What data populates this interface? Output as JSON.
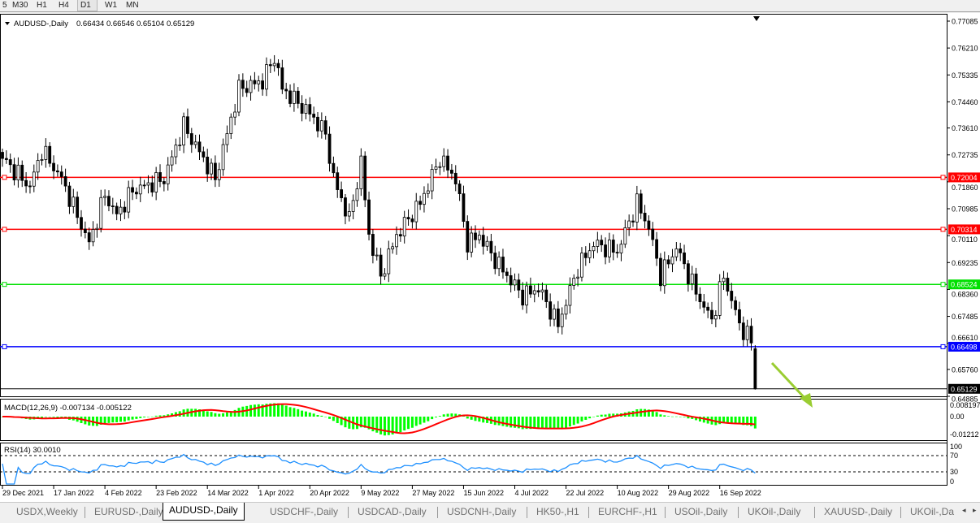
{
  "toolbar": {
    "timeframes": [
      {
        "label": "5"
      },
      {
        "label": "M30"
      },
      {
        "label": "H1"
      },
      {
        "label": "H4"
      },
      {
        "label": "D1",
        "active": true
      },
      {
        "label": "W1"
      },
      {
        "label": "MN"
      }
    ]
  },
  "chart": {
    "symbol_label": "AUDUSD-,Daily",
    "ohlc": "0.66434 0.66546 0.65104 0.65129",
    "price_axis": [
      "0.77085",
      "0.76210",
      "0.75335",
      "0.74460",
      "0.73610",
      "0.72735",
      "0.71860",
      "0.70985",
      "0.70110",
      "0.69235",
      "0.68360",
      "0.67485",
      "0.66610",
      "0.65760",
      "0.64885"
    ],
    "current_price": "0.65129",
    "levels": [
      {
        "price": "0.72004",
        "color": "#ff0000"
      },
      {
        "price": "0.70314",
        "color": "#ff0000"
      },
      {
        "price": "0.68524",
        "color": "#00e000"
      },
      {
        "price": "0.66498",
        "color": "#0000ff"
      }
    ],
    "annotation_arrow_color": "#9acd32",
    "date_axis": [
      "29 Dec 2021",
      "17 Jan 2022",
      "4 Feb 2022",
      "23 Feb 2022",
      "14 Mar 2022",
      "1 Apr 2022",
      "20 Apr 2022",
      "9 May 2022",
      "27 May 2022",
      "15 Jun 2022",
      "4 Jul 2022",
      "22 Jul 2022",
      "10 Aug 2022",
      "29 Aug 2022",
      "16 Sep 2022"
    ],
    "close_path": [
      [
        "2021-12-29",
        0.7262
      ],
      [
        "2022-01-07",
        0.717
      ],
      [
        "2022-01-12",
        0.7289
      ],
      [
        "2022-01-19",
        0.7196
      ],
      [
        "2022-01-28",
        0.6985
      ],
      [
        "2022-02-03",
        0.7144
      ],
      [
        "2022-02-08",
        0.7077
      ],
      [
        "2022-02-14",
        0.7157
      ],
      [
        "2022-02-24",
        0.7196
      ],
      [
        "2022-03-03",
        0.7368
      ],
      [
        "2022-03-15",
        0.7196
      ],
      [
        "2022-03-23",
        0.7488
      ],
      [
        "2022-03-31",
        0.7513
      ],
      [
        "2022-04-05",
        0.7592
      ],
      [
        "2022-04-07",
        0.7488
      ],
      [
        "2022-04-18",
        0.7408
      ],
      [
        "2022-04-22",
        0.7342
      ],
      [
        "2022-04-26",
        0.7196
      ],
      [
        "2022-05-02",
        0.7064
      ],
      [
        "2022-05-05",
        0.7249
      ],
      [
        "2022-05-09",
        0.7012
      ],
      [
        "2022-05-12",
        0.6879
      ],
      [
        "2022-05-18",
        0.7012
      ],
      [
        "2022-05-26",
        0.7117
      ],
      [
        "2022-06-02",
        0.7262
      ],
      [
        "2022-06-08",
        0.7196
      ],
      [
        "2022-06-13",
        0.6985
      ],
      [
        "2022-06-16",
        0.7012
      ],
      [
        "2022-06-22",
        0.6932
      ],
      [
        "2022-07-01",
        0.6814
      ],
      [
        "2022-07-07",
        0.684
      ],
      [
        "2022-07-14",
        0.6721
      ],
      [
        "2022-07-21",
        0.6906
      ],
      [
        "2022-07-27",
        0.6985
      ],
      [
        "2022-08-04",
        0.6959
      ],
      [
        "2022-08-11",
        0.7117
      ],
      [
        "2022-08-16",
        0.7038
      ],
      [
        "2022-08-19",
        0.6879
      ],
      [
        "2022-08-25",
        0.6972
      ],
      [
        "2022-09-01",
        0.6827
      ],
      [
        "2022-09-07",
        0.6734
      ],
      [
        "2022-09-12",
        0.6879
      ],
      [
        "2022-09-16",
        0.6721
      ],
      [
        "2022-09-21",
        0.6668
      ],
      [
        "2022-09-22",
        0.65129
      ]
    ],
    "macd": {
      "label": "MACD(12,26,9) -0.007134 -0.005122",
      "axis": [
        "0.008197",
        "0.00",
        "-0.01212"
      ],
      "histogram_color": "#00ff00",
      "signal_color": "#ff0000"
    },
    "rsi": {
      "label": "RSI(14) 30.0010",
      "axis": [
        "100",
        "70",
        "30",
        "0"
      ],
      "line_color": "#1e90ff",
      "levels": [
        70,
        30
      ]
    }
  },
  "tabs": [
    {
      "label": "USDX,Weekly"
    },
    {
      "label": "EURUSD-,Daily"
    },
    {
      "label": "AUDUSD-,Daily",
      "active": true
    },
    {
      "label": "USDCHF-,Daily"
    },
    {
      "label": "USDCAD-,Daily"
    },
    {
      "label": "USDCNH-,Daily"
    },
    {
      "label": "HK50-,H1"
    },
    {
      "label": "EURCHF-,H1"
    },
    {
      "label": "USOil-,Daily"
    },
    {
      "label": "UKOil-,Daily"
    },
    {
      "label": "XAUUSD-,Daily"
    },
    {
      "label": "UKOil-,Da"
    }
  ]
}
